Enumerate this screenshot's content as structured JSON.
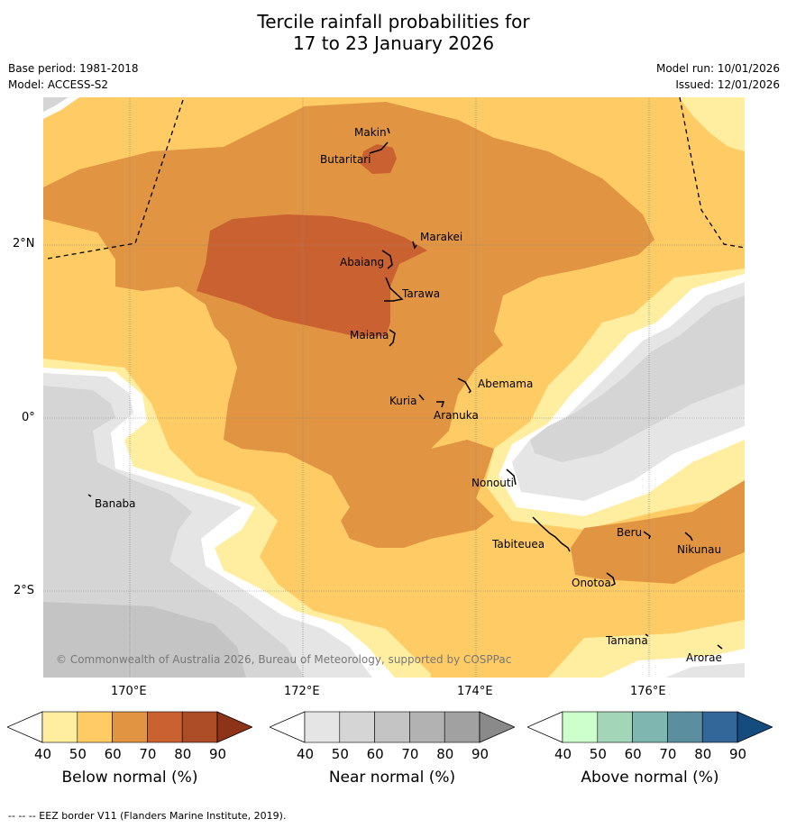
{
  "title": {
    "line1": "Tercile rainfall probabilities for",
    "line2": "17 to 23 January 2026"
  },
  "meta": {
    "base_period": "Base period: 1981-2018",
    "model": "Model: ACCESS-S2",
    "model_run": "Model run: 10/01/2026",
    "issued": "Issued: 12/01/2026"
  },
  "axes": {
    "lat_labels": [
      "2°N",
      "0°",
      "2°S"
    ],
    "lon_labels": [
      "170°E",
      "172°E",
      "174°E",
      "176°E"
    ]
  },
  "places": [
    "Makin",
    "Butaritari",
    "Marakei",
    "Abaiang",
    "Tarawa",
    "Maiana",
    "Abemama",
    "Kuria",
    "Aranuka",
    "Banaba",
    "Nonouti",
    "Tabiteuea",
    "Beru",
    "Nikunau",
    "Onotoa",
    "Tamana",
    "Arorae"
  ],
  "copyright": "© Commonwealth of Australia 2026, Bureau of Meteorology, supported by COSPPac",
  "colorbars": [
    {
      "label": "Below normal (%)",
      "ticks": [
        "40",
        "50",
        "60",
        "70",
        "80",
        "90"
      ],
      "colors": [
        "#ffffff",
        "#ffeda0",
        "#fecb65",
        "#e19442",
        "#ca6131",
        "#ad4d28",
        "#8c3318"
      ]
    },
    {
      "label": "Near normal (%)",
      "ticks": [
        "40",
        "50",
        "60",
        "70",
        "80",
        "90"
      ],
      "colors": [
        "#ffffff",
        "#e5e5e5",
        "#d5d5d5",
        "#c4c4c4",
        "#b2b2b2",
        "#a1a1a1",
        "#8a8a8a"
      ]
    },
    {
      "label": "Above normal (%)",
      "ticks": [
        "40",
        "50",
        "60",
        "70",
        "80",
        "90"
      ],
      "colors": [
        "#ffffff",
        "#ccffcc",
        "#a3d6b9",
        "#7fb7b0",
        "#5b8fa0",
        "#336699",
        "#144c7f"
      ]
    }
  ],
  "footer": "--  --  -- EEZ border V11 (Flanders Marine Institute, 2019)."
}
